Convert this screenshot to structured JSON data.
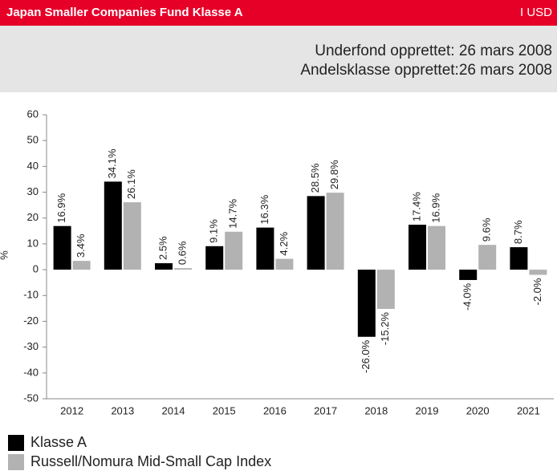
{
  "header": {
    "title": "Japan Smaller Companies Fund Klasse A",
    "share_class": "I USD",
    "info": [
      "Underfond opprettet: 26 mars 2008",
      "Andelsklasse opprettet:26 mars 2008"
    ]
  },
  "chart_data": {
    "type": "bar",
    "ylabel": "%",
    "categories": [
      "2012",
      "2013",
      "2014",
      "2015",
      "2016",
      "2017",
      "2018",
      "2019",
      "2020",
      "2021"
    ],
    "series": [
      {
        "name": "Klasse A",
        "color": "#000000",
        "values": [
          16.9,
          34.1,
          2.5,
          9.1,
          16.3,
          28.5,
          -26.0,
          17.4,
          -4.0,
          8.7
        ],
        "value_labels": [
          "16.9%",
          "34.1%",
          "2.5%",
          "9.1%",
          "16.3%",
          "28.5%",
          "-26.0%",
          "17.4%",
          "-4.0%",
          "8.7%"
        ]
      },
      {
        "name": "Russell/Nomura Mid-Small Cap Index",
        "color": "#b2b2b2",
        "values": [
          3.4,
          26.1,
          0.6,
          14.7,
          4.2,
          29.8,
          -15.2,
          16.9,
          9.6,
          -2.0
        ],
        "value_labels": [
          "3.4%",
          "26.1%",
          "0.6%",
          "14.7%",
          "4.2%",
          "29.8%",
          "-15.2%",
          "16.9%",
          "9.6%",
          "-2.0%"
        ]
      }
    ],
    "ylim": [
      -50,
      60
    ],
    "yticks": [
      -50,
      -40,
      -30,
      -20,
      -10,
      0,
      10,
      20,
      30,
      40,
      50,
      60
    ]
  }
}
